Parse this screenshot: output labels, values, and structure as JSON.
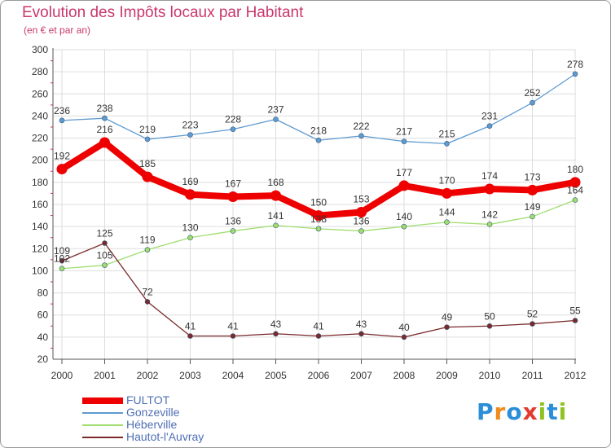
{
  "title": "Evolution des Impôts locaux par Habitant",
  "subtitle": "(en € et par an)",
  "brand": {
    "letters": [
      "P",
      "r",
      "o",
      "x",
      "i",
      "t",
      "i"
    ],
    "colors": [
      "#2a8fd8",
      "#f08a1c",
      "#2a8fd8",
      "#e23b2e",
      "#8fc11f",
      "#2a8fd8",
      "#8fc11f"
    ]
  },
  "chart_data": {
    "type": "line",
    "x": [
      "2000",
      "2001",
      "2002",
      "2003",
      "2004",
      "2005",
      "2006",
      "2007",
      "2008",
      "2009",
      "2010",
      "2011",
      "2012"
    ],
    "ylim": [
      20,
      300
    ],
    "yticks": [
      20,
      40,
      60,
      80,
      100,
      120,
      140,
      160,
      180,
      200,
      220,
      240,
      260,
      280,
      300
    ],
    "grid": true,
    "legend_position": "bottom-left",
    "series": [
      {
        "name": "FULTOT",
        "color": "#ee0000",
        "bold": true,
        "values": [
          192,
          216,
          185,
          169,
          167,
          168,
          150,
          153,
          177,
          170,
          174,
          173,
          180
        ]
      },
      {
        "name": "Gonzeville",
        "color": "#5f9bd0",
        "bold": false,
        "values": [
          236,
          238,
          219,
          223,
          228,
          237,
          218,
          222,
          217,
          215,
          231,
          252,
          278
        ]
      },
      {
        "name": "Héberville",
        "color": "#9fdd6e",
        "bold": false,
        "values": [
          102,
          105,
          119,
          130,
          136,
          141,
          138,
          136,
          140,
          144,
          142,
          149,
          164
        ]
      },
      {
        "name": "Hautot-l'Auvray",
        "color": "#7a2a2a",
        "bold": false,
        "values": [
          109,
          125,
          72,
          41,
          41,
          43,
          41,
          43,
          40,
          49,
          50,
          52,
          55
        ]
      }
    ]
  }
}
